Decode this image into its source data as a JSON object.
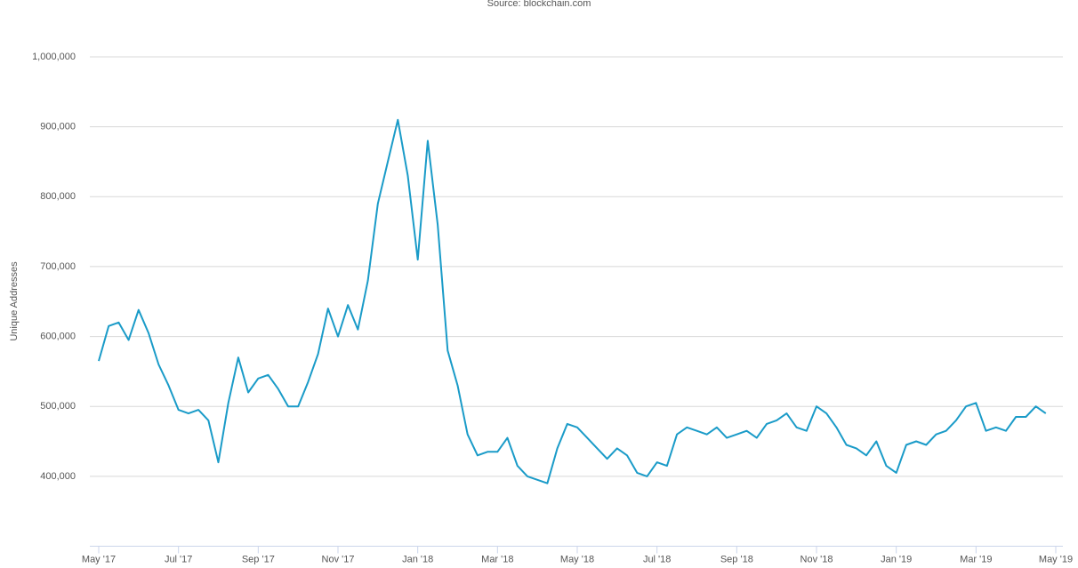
{
  "chart_data": {
    "type": "line",
    "subtitle": "Source: blockchain.com",
    "y_label": "Unique Addresses",
    "x": [
      "2017-05",
      "2017-05",
      "2017-05",
      "2017-05",
      "2017-06",
      "2017-06",
      "2017-06",
      "2017-06",
      "2017-07",
      "2017-07",
      "2017-07",
      "2017-07",
      "2017-08",
      "2017-08",
      "2017-08",
      "2017-08",
      "2017-09",
      "2017-09",
      "2017-09",
      "2017-09",
      "2017-10",
      "2017-10",
      "2017-10",
      "2017-10",
      "2017-11",
      "2017-11",
      "2017-11",
      "2017-11",
      "2017-12",
      "2017-12",
      "2017-12",
      "2017-12",
      "2018-01",
      "2018-01",
      "2018-01",
      "2018-01",
      "2018-02",
      "2018-02",
      "2018-02",
      "2018-02",
      "2018-03",
      "2018-03",
      "2018-03",
      "2018-03",
      "2018-04",
      "2018-04",
      "2018-04",
      "2018-04",
      "2018-05",
      "2018-05",
      "2018-05",
      "2018-05",
      "2018-06",
      "2018-06",
      "2018-06",
      "2018-06",
      "2018-07",
      "2018-07",
      "2018-07",
      "2018-07",
      "2018-08",
      "2018-08",
      "2018-08",
      "2018-08",
      "2018-09",
      "2018-09",
      "2018-09",
      "2018-09",
      "2018-10",
      "2018-10",
      "2018-10",
      "2018-10",
      "2018-11",
      "2018-11",
      "2018-11",
      "2018-11",
      "2018-12",
      "2018-12",
      "2018-12",
      "2018-12",
      "2019-01",
      "2019-01",
      "2019-01",
      "2019-01",
      "2019-02",
      "2019-02",
      "2019-02",
      "2019-02",
      "2019-03",
      "2019-03",
      "2019-03",
      "2019-03",
      "2019-04",
      "2019-04",
      "2019-04",
      "2019-04"
    ],
    "series": [
      {
        "name": "Unique Addresses",
        "color": "#1a9bc8",
        "values": [
          565000,
          615000,
          620000,
          595000,
          638000,
          605000,
          560000,
          530000,
          495000,
          490000,
          495000,
          480000,
          420000,
          505000,
          570000,
          520000,
          540000,
          545000,
          525000,
          500000,
          500000,
          535000,
          575000,
          640000,
          600000,
          645000,
          610000,
          680000,
          790000,
          850000,
          910000,
          830000,
          710000,
          880000,
          760000,
          580000,
          530000,
          460000,
          430000,
          435000,
          435000,
          455000,
          415000,
          400000,
          395000,
          390000,
          440000,
          475000,
          470000,
          455000,
          440000,
          425000,
          440000,
          430000,
          405000,
          400000,
          420000,
          415000,
          460000,
          470000,
          465000,
          460000,
          470000,
          455000,
          460000,
          465000,
          455000,
          475000,
          480000,
          490000,
          470000,
          465000,
          500000,
          490000,
          470000,
          445000,
          440000,
          430000,
          450000,
          415000,
          405000,
          445000,
          450000,
          445000,
          460000,
          465000,
          480000,
          500000,
          505000,
          465000,
          470000,
          465000,
          485000,
          485000,
          500000,
          490000
        ]
      }
    ],
    "ylim": [
      300000,
      1000000
    ],
    "yticks": [
      {
        "value": 400000,
        "label": "400,000"
      },
      {
        "value": 500000,
        "label": "500,000"
      },
      {
        "value": 600000,
        "label": "600,000"
      },
      {
        "value": 700000,
        "label": "700,000"
      },
      {
        "value": 800000,
        "label": "800,000"
      },
      {
        "value": 900000,
        "label": "900,000"
      },
      {
        "value": 1000000,
        "label": "1,000,000"
      }
    ],
    "xticks": [
      {
        "value": "2017-05",
        "label": "May '17"
      },
      {
        "value": "2017-07",
        "label": "Jul '17"
      },
      {
        "value": "2017-09",
        "label": "Sep '17"
      },
      {
        "value": "2017-11",
        "label": "Nov '17"
      },
      {
        "value": "2018-01",
        "label": "Jan '18"
      },
      {
        "value": "2018-03",
        "label": "Mar '18"
      },
      {
        "value": "2018-05",
        "label": "May '18"
      },
      {
        "value": "2018-07",
        "label": "Jul '18"
      },
      {
        "value": "2018-09",
        "label": "Sep '18"
      },
      {
        "value": "2018-11",
        "label": "Nov '18"
      },
      {
        "value": "2019-01",
        "label": "Jan '19"
      },
      {
        "value": "2019-03",
        "label": "Mar '19"
      },
      {
        "value": "2019-05",
        "label": "May '19"
      }
    ],
    "grid": true
  }
}
